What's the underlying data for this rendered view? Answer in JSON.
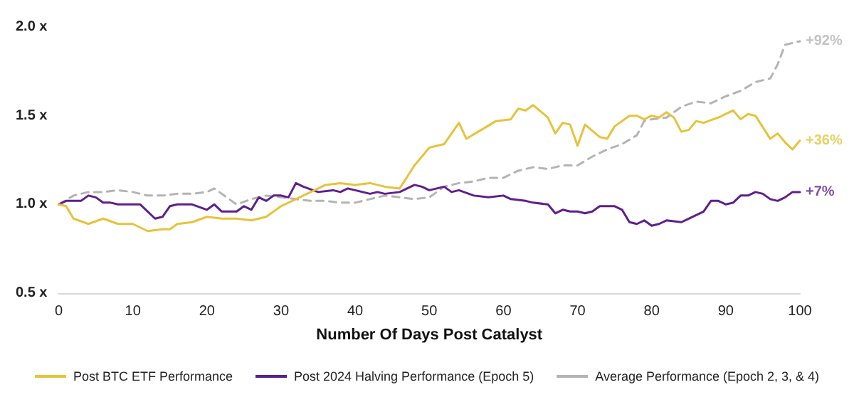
{
  "chart_data": {
    "type": "line",
    "xlabel": "Number Of Days Post Catalyst",
    "xlim": [
      0,
      100
    ],
    "xticks": [
      0,
      10,
      20,
      30,
      40,
      50,
      60,
      70,
      80,
      90,
      100
    ],
    "ylim": [
      0.5,
      2.0
    ],
    "yticks": [
      {
        "value": 0.5,
        "label": "0.5 x"
      },
      {
        "value": 1.0,
        "label": "1.0 x"
      },
      {
        "value": 1.5,
        "label": "1.5 x"
      },
      {
        "value": 2.0,
        "label": "2.0 x"
      }
    ],
    "grid": false,
    "legend": "bottom",
    "marker": "none",
    "series": [
      {
        "name": "Post BTC ETF Performance",
        "color": "#e6c33c",
        "line_style": "solid",
        "x": [
          0,
          1,
          2,
          4,
          6,
          8,
          10,
          12,
          14,
          15,
          16,
          18,
          20,
          22,
          24,
          26,
          28,
          30,
          32,
          34,
          36,
          38,
          40,
          42,
          44,
          46,
          48,
          50,
          52,
          54,
          55,
          57,
          59,
          61,
          62,
          63,
          64,
          66,
          67,
          68,
          69,
          70,
          71,
          73,
          74,
          75,
          77,
          78,
          79,
          80,
          81,
          82,
          83,
          84,
          85,
          86,
          87,
          89,
          91,
          92,
          93,
          94,
          96,
          97,
          98,
          99,
          100
        ],
        "values": [
          1.0,
          0.99,
          0.92,
          0.89,
          0.92,
          0.89,
          0.89,
          0.85,
          0.86,
          0.86,
          0.89,
          0.9,
          0.93,
          0.92,
          0.92,
          0.91,
          0.93,
          0.99,
          1.03,
          1.07,
          1.11,
          1.12,
          1.11,
          1.12,
          1.1,
          1.09,
          1.22,
          1.32,
          1.34,
          1.46,
          1.37,
          1.42,
          1.47,
          1.48,
          1.54,
          1.53,
          1.56,
          1.49,
          1.4,
          1.46,
          1.45,
          1.33,
          1.45,
          1.38,
          1.37,
          1.44,
          1.5,
          1.5,
          1.48,
          1.5,
          1.49,
          1.52,
          1.49,
          1.41,
          1.42,
          1.47,
          1.46,
          1.49,
          1.53,
          1.48,
          1.51,
          1.5,
          1.37,
          1.4,
          1.35,
          1.31,
          1.36
        ]
      },
      {
        "name": "Post 2024 Halving Performance (Epoch 5)",
        "color": "#5e1f8c",
        "line_style": "solid",
        "x": [
          0,
          1,
          2,
          3,
          4,
          5,
          6,
          7,
          8,
          10,
          11,
          13,
          14,
          15,
          16,
          18,
          20,
          21,
          22,
          24,
          25,
          26,
          27,
          28,
          29,
          30,
          31,
          32,
          33,
          35,
          37,
          38,
          39,
          40,
          42,
          43,
          44,
          46,
          47,
          48,
          49,
          50,
          52,
          53,
          54,
          56,
          58,
          60,
          61,
          63,
          64,
          66,
          67,
          68,
          69,
          70,
          71,
          72,
          73,
          75,
          76,
          77,
          78,
          79,
          80,
          81,
          82,
          84,
          85,
          86,
          87,
          88,
          89,
          90,
          91,
          92,
          93,
          94,
          95,
          96,
          97,
          98,
          99,
          100
        ],
        "values": [
          1.0,
          1.02,
          1.02,
          1.02,
          1.05,
          1.04,
          1.01,
          1.01,
          1.0,
          1.0,
          1.0,
          0.92,
          0.93,
          0.99,
          1.0,
          1.0,
          0.97,
          1.0,
          0.96,
          0.96,
          0.99,
          0.97,
          1.04,
          1.02,
          1.05,
          1.05,
          1.04,
          1.12,
          1.1,
          1.07,
          1.08,
          1.07,
          1.09,
          1.08,
          1.06,
          1.07,
          1.06,
          1.07,
          1.09,
          1.11,
          1.1,
          1.08,
          1.1,
          1.07,
          1.08,
          1.05,
          1.04,
          1.05,
          1.03,
          1.02,
          1.01,
          1.0,
          0.95,
          0.97,
          0.96,
          0.96,
          0.95,
          0.96,
          0.99,
          0.99,
          0.97,
          0.9,
          0.89,
          0.91,
          0.88,
          0.89,
          0.91,
          0.9,
          0.92,
          0.94,
          0.96,
          1.02,
          1.02,
          1.0,
          1.01,
          1.05,
          1.05,
          1.07,
          1.06,
          1.03,
          1.02,
          1.04,
          1.07,
          1.07
        ]
      },
      {
        "name": "Average Performance (Epoch 2, 3, & 4)",
        "color": "#b4b4b4",
        "line_style": "dashed",
        "x": [
          0,
          2,
          4,
          6,
          8,
          10,
          12,
          14,
          16,
          18,
          20,
          21,
          22,
          24,
          26,
          28,
          30,
          32,
          34,
          36,
          38,
          40,
          42,
          44,
          46,
          48,
          50,
          52,
          54,
          56,
          58,
          60,
          62,
          64,
          66,
          68,
          70,
          72,
          74,
          76,
          78,
          79,
          80,
          82,
          84,
          86,
          88,
          90,
          92,
          94,
          96,
          97,
          98,
          100
        ],
        "values": [
          1.0,
          1.05,
          1.07,
          1.07,
          1.08,
          1.07,
          1.05,
          1.05,
          1.06,
          1.06,
          1.07,
          1.09,
          1.06,
          1.0,
          1.03,
          1.05,
          1.04,
          1.03,
          1.02,
          1.02,
          1.01,
          1.01,
          1.03,
          1.05,
          1.04,
          1.03,
          1.04,
          1.1,
          1.12,
          1.13,
          1.15,
          1.15,
          1.19,
          1.21,
          1.2,
          1.22,
          1.22,
          1.27,
          1.31,
          1.34,
          1.39,
          1.47,
          1.48,
          1.49,
          1.55,
          1.58,
          1.57,
          1.61,
          1.64,
          1.69,
          1.71,
          1.79,
          1.9,
          1.92
        ]
      }
    ],
    "annotations": [
      "+36%",
      "+7%",
      "+92%"
    ]
  }
}
